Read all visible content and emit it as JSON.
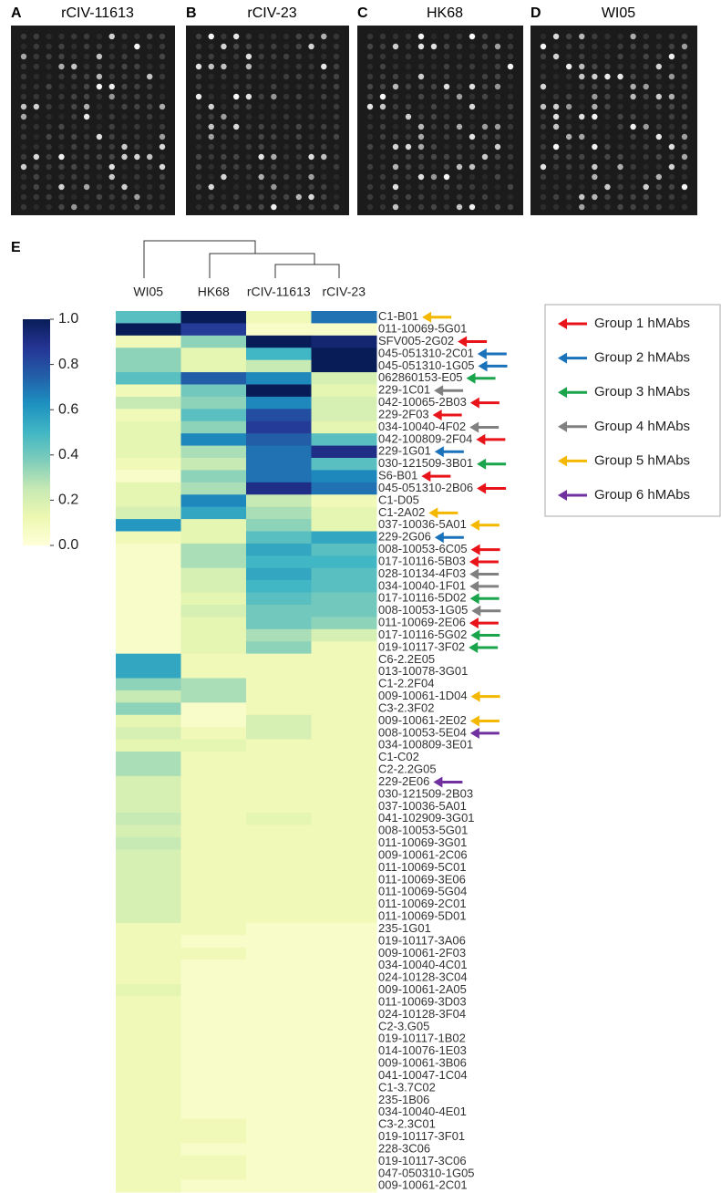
{
  "panels": [
    {
      "letter": "A",
      "title": "rCIV-11613"
    },
    {
      "letter": "B",
      "title": "rCIV-23"
    },
    {
      "letter": "C",
      "title": "HK68"
    },
    {
      "letter": "D",
      "title": "WI05"
    }
  ],
  "chart_data": {
    "type": "heatmap",
    "letter": "E",
    "x": [
      "WI05",
      "HK68",
      "rCIV-11613",
      "rCIV-23"
    ],
    "y": [
      "C1-B01",
      "011-10069-5G01",
      "SFV005-2G02",
      "045-051310-2C01",
      "045-051310-1G05",
      "062860153-E05",
      "229-1C01",
      "042-10065-2B03",
      "229-2F03",
      "034-10040-4F02",
      "042-100809-2F04",
      "229-1G01",
      "030-121509-3B01",
      "S6-B01",
      "045-051310-2B06",
      "C1-D05",
      "C1-2A02",
      "037-10036-5A01",
      "229-2G06",
      "008-10053-6C05",
      "017-10116-5B03",
      "028-10134-4F03",
      "034-10040-1F01",
      "017-10116-5D02",
      "008-10053-1G05",
      "011-10069-2E06",
      "017-10116-5G02",
      "019-10117-3F02",
      "C6-2.2E05",
      "013-10078-3G01",
      "C1-2.2F04",
      "009-10061-1D04",
      "C3-2.3F02",
      "009-10061-2E02",
      "008-10053-5E04",
      "034-100809-3E01",
      "C1-C02",
      "C2-2.2G05",
      "229-2E06",
      "030-121509-2B03",
      "037-10036-5A01",
      "041-102909-3G01",
      "008-10053-5G01",
      "011-10069-3G01",
      "009-10061-2C06",
      "011-10069-5C01",
      "011-10069-3E06",
      "011-10069-5G04",
      "011-10069-2C01",
      "011-10069-5D01",
      "235-1G01",
      "019-10117-3A06",
      "009-10061-2F03",
      "034-10040-4C01",
      "024-10128-3C04",
      "009-10061-2A05",
      "011-10069-3D03",
      "024-10128-3F04",
      "C2-3.G05",
      "019-10117-1B02",
      "014-10076-1E03",
      "009-10061-3B06",
      "041-10047-1C04",
      "C1-3.7C02",
      "235-1B06",
      "034-10040-4E01",
      "C3-2.3C01",
      "019-10117-3F01",
      "228-3C06",
      "019-10117-3C06",
      "047-050310-1G05",
      "009-10061-2C01"
    ],
    "values": [
      [
        0.45,
        1.0,
        0.1,
        0.7
      ],
      [
        1.0,
        0.85,
        0.05,
        0.05
      ],
      [
        0.1,
        0.35,
        1.0,
        0.95
      ],
      [
        0.35,
        0.15,
        0.5,
        1.0
      ],
      [
        0.35,
        0.15,
        0.25,
        1.0
      ],
      [
        0.45,
        0.75,
        0.65,
        0.2
      ],
      [
        0.1,
        0.4,
        1.0,
        0.15
      ],
      [
        0.25,
        0.35,
        0.65,
        0.2
      ],
      [
        0.1,
        0.45,
        0.8,
        0.2
      ],
      [
        0.15,
        0.35,
        0.85,
        0.15
      ],
      [
        0.15,
        0.65,
        0.75,
        0.45
      ],
      [
        0.15,
        0.3,
        0.7,
        0.9
      ],
      [
        0.1,
        0.25,
        0.7,
        0.45
      ],
      [
        0.05,
        0.35,
        0.7,
        0.65
      ],
      [
        0.15,
        0.3,
        0.9,
        0.7
      ],
      [
        0.15,
        0.65,
        0.25,
        0.1
      ],
      [
        0.2,
        0.55,
        0.3,
        0.15
      ],
      [
        0.6,
        0.15,
        0.35,
        0.15
      ],
      [
        0.1,
        0.15,
        0.45,
        0.55
      ],
      [
        0.05,
        0.3,
        0.55,
        0.45
      ],
      [
        0.05,
        0.3,
        0.5,
        0.5
      ],
      [
        0.05,
        0.2,
        0.55,
        0.45
      ],
      [
        0.05,
        0.2,
        0.5,
        0.45
      ],
      [
        0.05,
        0.15,
        0.45,
        0.4
      ],
      [
        0.05,
        0.2,
        0.4,
        0.4
      ],
      [
        0.05,
        0.15,
        0.4,
        0.35
      ],
      [
        0.05,
        0.15,
        0.3,
        0.2
      ],
      [
        0.05,
        0.15,
        0.35,
        0.1
      ],
      [
        0.55,
        0.1,
        0.1,
        0.1
      ],
      [
        0.55,
        0.1,
        0.1,
        0.1
      ],
      [
        0.35,
        0.3,
        0.1,
        0.1
      ],
      [
        0.25,
        0.3,
        0.1,
        0.1
      ],
      [
        0.35,
        0.05,
        0.1,
        0.1
      ],
      [
        0.15,
        0.05,
        0.2,
        0.1
      ],
      [
        0.2,
        0.1,
        0.2,
        0.1
      ],
      [
        0.15,
        0.15,
        0.1,
        0.1
      ],
      [
        0.3,
        0.1,
        0.1,
        0.1
      ],
      [
        0.3,
        0.1,
        0.1,
        0.1
      ],
      [
        0.2,
        0.1,
        0.1,
        0.1
      ],
      [
        0.2,
        0.1,
        0.1,
        0.1
      ],
      [
        0.2,
        0.1,
        0.1,
        0.1
      ],
      [
        0.25,
        0.1,
        0.15,
        0.1
      ],
      [
        0.2,
        0.1,
        0.1,
        0.1
      ],
      [
        0.25,
        0.1,
        0.1,
        0.1
      ],
      [
        0.2,
        0.1,
        0.1,
        0.1
      ],
      [
        0.2,
        0.1,
        0.1,
        0.1
      ],
      [
        0.2,
        0.1,
        0.1,
        0.1
      ],
      [
        0.2,
        0.1,
        0.1,
        0.1
      ],
      [
        0.2,
        0.1,
        0.1,
        0.1
      ],
      [
        0.2,
        0.1,
        0.1,
        0.1
      ],
      [
        0.1,
        0.1,
        0.05,
        0.05
      ],
      [
        0.1,
        0.05,
        0.05,
        0.05
      ],
      [
        0.1,
        0.1,
        0.05,
        0.05
      ],
      [
        0.1,
        0.05,
        0.05,
        0.05
      ],
      [
        0.1,
        0.05,
        0.05,
        0.05
      ],
      [
        0.15,
        0.05,
        0.05,
        0.05
      ],
      [
        0.1,
        0.05,
        0.05,
        0.05
      ],
      [
        0.1,
        0.05,
        0.05,
        0.05
      ],
      [
        0.1,
        0.05,
        0.05,
        0.05
      ],
      [
        0.1,
        0.05,
        0.05,
        0.05
      ],
      [
        0.1,
        0.05,
        0.05,
        0.05
      ],
      [
        0.1,
        0.05,
        0.05,
        0.05
      ],
      [
        0.1,
        0.05,
        0.05,
        0.05
      ],
      [
        0.1,
        0.05,
        0.05,
        0.05
      ],
      [
        0.1,
        0.05,
        0.05,
        0.05
      ],
      [
        0.1,
        0.05,
        0.05,
        0.05
      ],
      [
        0.1,
        0.1,
        0.05,
        0.05
      ],
      [
        0.1,
        0.1,
        0.05,
        0.05
      ],
      [
        0.1,
        0.05,
        0.05,
        0.05
      ],
      [
        0.1,
        0.1,
        0.05,
        0.05
      ],
      [
        0.1,
        0.1,
        0.05,
        0.05
      ],
      [
        0.1,
        0.05,
        0.05,
        0.05
      ]
    ],
    "row_groups": [
      5,
      null,
      1,
      2,
      2,
      3,
      4,
      1,
      1,
      4,
      1,
      2,
      3,
      1,
      1,
      null,
      5,
      5,
      2,
      1,
      1,
      4,
      4,
      3,
      4,
      1,
      3,
      3,
      null,
      null,
      null,
      5,
      null,
      5,
      6,
      null,
      null,
      null,
      6,
      null,
      null,
      null,
      null,
      null,
      null,
      null,
      null,
      null,
      null,
      null,
      null,
      null,
      null,
      null,
      null,
      null,
      null,
      null,
      null,
      null,
      null,
      null,
      null,
      null,
      null,
      null,
      null,
      null,
      null,
      null,
      null,
      null
    ],
    "zlim": [
      0,
      1
    ],
    "zticks": [
      {
        "value": 1,
        "label": "1.0"
      },
      0.8,
      0.6,
      0.4,
      0.2,
      {
        "value": 0,
        "label": "0.0"
      }
    ],
    "colorscale": [
      "#ffffd9",
      "#edf8b1",
      "#c7e9b4",
      "#7fcdbb",
      "#41b6c4",
      "#1d91c0",
      "#225ea8",
      "#253494",
      "#081d58"
    ],
    "legend": [
      {
        "name": "Group 1 hMAbs",
        "color": "#e8141a"
      },
      {
        "name": "Group 2 hMAbs",
        "color": "#1a72bb"
      },
      {
        "name": "Group 3 hMAbs",
        "color": "#1aa54d"
      },
      {
        "name": "Group 4 hMAbs",
        "color": "#808080"
      },
      {
        "name": "Group 5 hMAbs",
        "color": "#f5b800"
      },
      {
        "name": "Group 6 hMAbs",
        "color": "#7030a0"
      }
    ]
  }
}
